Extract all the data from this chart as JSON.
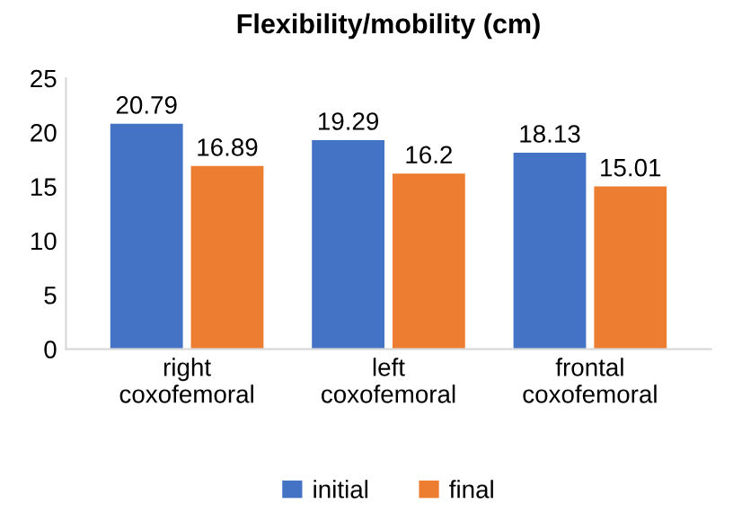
{
  "chart_data": {
    "type": "bar",
    "title": "Flexibility/mobility (cm)",
    "categories": [
      "right\ncoxofemoral",
      "left\ncoxofemoral",
      "frontal\ncoxofemoral"
    ],
    "series": [
      {
        "name": "initial",
        "color": "#4472c4",
        "values": [
          20.79,
          19.29,
          18.13
        ]
      },
      {
        "name": "final",
        "color": "#ed7d31",
        "values": [
          16.89,
          16.2,
          15.01
        ]
      }
    ],
    "ylim": [
      0,
      25
    ],
    "yticks": [
      0,
      5,
      10,
      15,
      20,
      25
    ],
    "grid": false,
    "legend": "bottom",
    "data_labels": true
  }
}
